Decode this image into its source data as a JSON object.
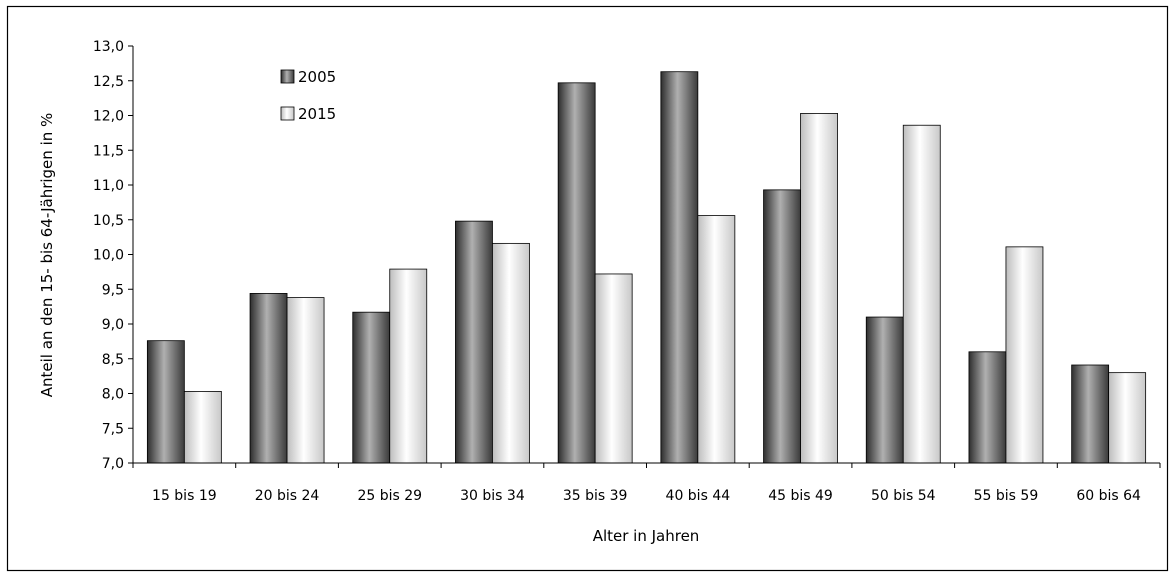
{
  "chart_data": {
    "type": "bar",
    "title": "",
    "xlabel": "Alter in Jahren",
    "ylabel": "Anteil an den 15- bis 64-Jährigen in %",
    "ylim": [
      7.0,
      13.0
    ],
    "yticks": [
      "7,0",
      "7,5",
      "8,0",
      "8,5",
      "9,0",
      "9,5",
      "10,0",
      "10,5",
      "11,0",
      "11,5",
      "12,0",
      "12,5",
      "13,0"
    ],
    "grid": false,
    "legend_position": "top-left",
    "categories": [
      "15 bis 19",
      "20 bis 24",
      "25 bis 29",
      "30 bis 34",
      "35 bis 39",
      "40 bis 44",
      "45 bis 49",
      "50 bis 54",
      "55 bis 59",
      "60 bis 64"
    ],
    "series": [
      {
        "name": "2005",
        "color": "#555555",
        "values": [
          8.76,
          9.44,
          9.17,
          10.48,
          12.47,
          12.63,
          10.93,
          9.1,
          8.6,
          8.41
        ]
      },
      {
        "name": "2015",
        "color": "#d9d9d9",
        "values": [
          8.03,
          9.38,
          9.79,
          10.16,
          9.72,
          10.56,
          12.03,
          11.86,
          10.11,
          8.3
        ]
      }
    ]
  }
}
